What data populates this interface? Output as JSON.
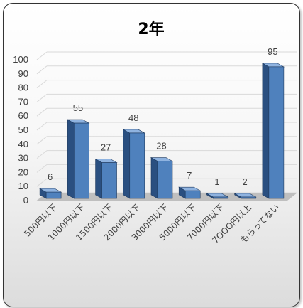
{
  "chart_data": {
    "type": "bar",
    "title": "2年",
    "categories": [
      "500円以下",
      "1000円以下",
      "1500円以下",
      "2000円以下",
      "3000円以下",
      "5000円以下",
      "7000円以下",
      "7OOO円以上",
      "もらってない"
    ],
    "values": [
      6,
      55,
      27,
      48,
      28,
      7,
      1,
      2,
      95
    ],
    "ylim": [
      0,
      100
    ],
    "yticks": [
      0,
      10,
      20,
      30,
      40,
      50,
      60,
      70,
      80,
      90,
      100
    ],
    "grid": true,
    "legend": "none",
    "style": "3d-column",
    "colors": {
      "bar_front": "#4f81bd",
      "bar_side": "#2a4f80",
      "bar_top": "#8fb3e0",
      "grid": "#d9d9d9",
      "floor": "#bfbfbf"
    }
  }
}
